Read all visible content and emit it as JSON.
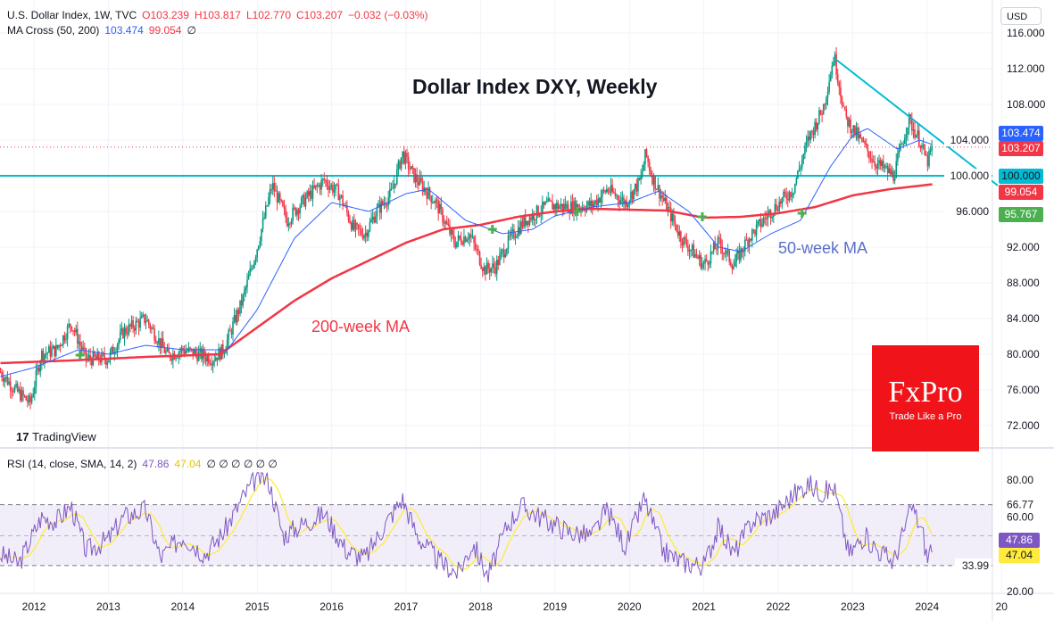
{
  "header": {
    "symbol": "U.S. Dollar Index, 1W, TVC",
    "open": "O103.239",
    "high": "H103.817",
    "low": "L102.770",
    "close": "C103.207",
    "change": "−0.032 (−0.03%)",
    "ma_label": "MA Cross (50, 200)",
    "ma_fast": "103.474",
    "ma_slow": "99.054",
    "ma_extra": "∅",
    "rsi_label": "RSI (14, close, SMA, 14, 2)",
    "rsi_value": "47.86",
    "rsi_sma": "47.04",
    "rsi_extra": "∅ ∅ ∅ ∅ ∅ ∅"
  },
  "currency_button": "USD",
  "annotations": {
    "title": "Dollar Index DXY, Weekly",
    "ma200": "200-week MA",
    "ma50": "50-week MA",
    "watermark": "TradingView"
  },
  "logo": {
    "brand": "FxPro",
    "tagline": "Trade Like a Pro"
  },
  "price_tags": {
    "ma_fast": "103.474",
    "last": "103.207",
    "level": "100.000",
    "ma_slow": "99.054",
    "cross": "95.767",
    "rsi": "47.86",
    "rsi_sma": "47.04"
  },
  "colors": {
    "up": "#089981",
    "down": "#f23645",
    "ma50": "#2962ff",
    "ma200": "#f23645",
    "level": "#00bcd4",
    "rsi": "#7e57c2",
    "rsi_sma": "#ffeb3b",
    "cross": "#4caf50"
  },
  "chart_data": {
    "type": "line",
    "x_ticks": [
      "2012",
      "2013",
      "2014",
      "2015",
      "2016",
      "2017",
      "2018",
      "2019",
      "2020",
      "2021",
      "2022",
      "2023",
      "2024",
      "20"
    ],
    "price_ticks": [
      "116.000",
      "112.000",
      "108.000",
      "104.000",
      "100.000",
      "96.000",
      "92.000",
      "88.000",
      "84.000",
      "80.000",
      "76.000",
      "72.000"
    ],
    "rsi_ticks": [
      "80.00",
      "66.77",
      "60.00",
      "33.99",
      "20.00"
    ],
    "price_ylim": [
      72,
      116
    ],
    "rsi_ylim": [
      20,
      80
    ],
    "price": [
      [
        2011.55,
        78
      ],
      [
        2011.75,
        76
      ],
      [
        2011.95,
        74.5
      ],
      [
        2012.1,
        80
      ],
      [
        2012.3,
        80.5
      ],
      [
        2012.5,
        83.5
      ],
      [
        2012.7,
        79.5
      ],
      [
        2013.0,
        79.5
      ],
      [
        2013.2,
        82.5
      ],
      [
        2013.5,
        84
      ],
      [
        2013.8,
        79.8
      ],
      [
        2014.0,
        80.5
      ],
      [
        2014.4,
        79.5
      ],
      [
        2014.55,
        80.5
      ],
      [
        2014.8,
        86
      ],
      [
        2015.0,
        92
      ],
      [
        2015.2,
        99
      ],
      [
        2015.4,
        95
      ],
      [
        2015.6,
        97
      ],
      [
        2015.9,
        99.5
      ],
      [
        2016.1,
        98
      ],
      [
        2016.3,
        94
      ],
      [
        2016.45,
        93.5
      ],
      [
        2016.6,
        96
      ],
      [
        2016.8,
        98
      ],
      [
        2016.95,
        102.5
      ],
      [
        2017.1,
        100
      ],
      [
        2017.4,
        97
      ],
      [
        2017.65,
        92.5
      ],
      [
        2017.85,
        93.5
      ],
      [
        2018.05,
        89.5
      ],
      [
        2018.2,
        89.8
      ],
      [
        2018.4,
        93
      ],
      [
        2018.6,
        95
      ],
      [
        2018.9,
        96.7
      ],
      [
        2019.2,
        96.5
      ],
      [
        2019.5,
        96.7
      ],
      [
        2019.7,
        98.5
      ],
      [
        2019.95,
        97
      ],
      [
        2020.15,
        99.5
      ],
      [
        2020.22,
        102.5
      ],
      [
        2020.3,
        100
      ],
      [
        2020.5,
        96.5
      ],
      [
        2020.7,
        93
      ],
      [
        2021.0,
        90
      ],
      [
        2021.2,
        92.5
      ],
      [
        2021.4,
        90
      ],
      [
        2021.6,
        93
      ],
      [
        2021.9,
        96
      ],
      [
        2022.2,
        98.5
      ],
      [
        2022.4,
        104
      ],
      [
        2022.6,
        107.5
      ],
      [
        2022.75,
        113.5
      ],
      [
        2022.9,
        106.5
      ],
      [
        2023.1,
        104
      ],
      [
        2023.3,
        101.5
      ],
      [
        2023.55,
        100
      ],
      [
        2023.75,
        106.3
      ],
      [
        2023.9,
        104
      ],
      [
        2024.0,
        101.5
      ],
      [
        2024.08,
        103.207
      ]
    ],
    "ma50": [
      [
        2011.55,
        77.5
      ],
      [
        2012.0,
        78.5
      ],
      [
        2012.6,
        80.5
      ],
      [
        2013.0,
        80
      ],
      [
        2013.5,
        81
      ],
      [
        2014.0,
        80.5
      ],
      [
        2014.6,
        80.5
      ],
      [
        2015.0,
        85
      ],
      [
        2015.5,
        93
      ],
      [
        2016.0,
        97
      ],
      [
        2016.5,
        96
      ],
      [
        2017.0,
        98
      ],
      [
        2017.3,
        98.5
      ],
      [
        2017.8,
        95
      ],
      [
        2018.3,
        93.5
      ],
      [
        2018.7,
        94
      ],
      [
        2019.0,
        95.5
      ],
      [
        2019.5,
        96.5
      ],
      [
        2020.0,
        97
      ],
      [
        2020.4,
        98.3
      ],
      [
        2020.8,
        96
      ],
      [
        2021.2,
        92
      ],
      [
        2021.5,
        91.5
      ],
      [
        2021.9,
        93.5
      ],
      [
        2022.3,
        95
      ],
      [
        2022.7,
        101
      ],
      [
        2023.0,
        104.5
      ],
      [
        2023.2,
        105.3
      ],
      [
        2023.6,
        103
      ],
      [
        2023.9,
        104
      ],
      [
        2024.08,
        103.474
      ]
    ],
    "ma200": [
      [
        2011.55,
        79
      ],
      [
        2012.5,
        79.3
      ],
      [
        2013.5,
        79.7
      ],
      [
        2014.5,
        80
      ],
      [
        2015.0,
        83
      ],
      [
        2015.5,
        86
      ],
      [
        2016.0,
        88.5
      ],
      [
        2016.5,
        90.5
      ],
      [
        2017.0,
        92.5
      ],
      [
        2017.5,
        94
      ],
      [
        2018.0,
        94.5
      ],
      [
        2018.5,
        95.4
      ],
      [
        2019.0,
        96
      ],
      [
        2019.5,
        96.3
      ],
      [
        2020.0,
        96.2
      ],
      [
        2020.5,
        96.1
      ],
      [
        2021.0,
        95.3
      ],
      [
        2021.5,
        95.4
      ],
      [
        2022.0,
        95.8
      ],
      [
        2022.5,
        96.5
      ],
      [
        2023.0,
        97.8
      ],
      [
        2023.5,
        98.5
      ],
      [
        2024.08,
        99.054
      ]
    ],
    "crosses": [
      [
        2012.62,
        79.9
      ],
      [
        2018.16,
        94
      ],
      [
        2019.3,
        96
      ],
      [
        2020.98,
        95.4
      ],
      [
        2022.32,
        95.8
      ]
    ],
    "trendline": [
      [
        2022.75,
        113.2
      ],
      [
        2024.95,
        98.9
      ]
    ],
    "level": 100,
    "last": 103.207,
    "rsi": [
      [
        2011.55,
        40
      ],
      [
        2011.8,
        35
      ],
      [
        2012.1,
        60
      ],
      [
        2012.3,
        58
      ],
      [
        2012.5,
        66
      ],
      [
        2012.7,
        42
      ],
      [
        2013.0,
        48
      ],
      [
        2013.2,
        60
      ],
      [
        2013.5,
        64
      ],
      [
        2013.7,
        38
      ],
      [
        2014.0,
        50
      ],
      [
        2014.3,
        40
      ],
      [
        2014.55,
        52
      ],
      [
        2014.8,
        70
      ],
      [
        2015.0,
        82
      ],
      [
        2015.15,
        80
      ],
      [
        2015.35,
        50
      ],
      [
        2015.6,
        56
      ],
      [
        2015.9,
        62
      ],
      [
        2016.2,
        42
      ],
      [
        2016.45,
        38
      ],
      [
        2016.7,
        55
      ],
      [
        2016.95,
        70
      ],
      [
        2017.15,
        50
      ],
      [
        2017.45,
        36
      ],
      [
        2017.7,
        30
      ],
      [
        2017.9,
        46
      ],
      [
        2018.1,
        28
      ],
      [
        2018.35,
        55
      ],
      [
        2018.55,
        66
      ],
      [
        2018.9,
        58
      ],
      [
        2019.2,
        52
      ],
      [
        2019.5,
        50
      ],
      [
        2019.7,
        64
      ],
      [
        2019.95,
        44
      ],
      [
        2020.2,
        70
      ],
      [
        2020.45,
        42
      ],
      [
        2020.7,
        36
      ],
      [
        2021.0,
        34
      ],
      [
        2021.2,
        55
      ],
      [
        2021.4,
        40
      ],
      [
        2021.65,
        58
      ],
      [
        2021.95,
        62
      ],
      [
        2022.2,
        72
      ],
      [
        2022.4,
        78
      ],
      [
        2022.6,
        73
      ],
      [
        2022.75,
        76
      ],
      [
        2022.95,
        40
      ],
      [
        2023.15,
        50
      ],
      [
        2023.35,
        42
      ],
      [
        2023.55,
        36
      ],
      [
        2023.8,
        66
      ],
      [
        2023.95,
        50
      ],
      [
        2024.0,
        37
      ],
      [
        2024.08,
        47.86
      ]
    ],
    "rsi_sma_final": 47.04
  }
}
